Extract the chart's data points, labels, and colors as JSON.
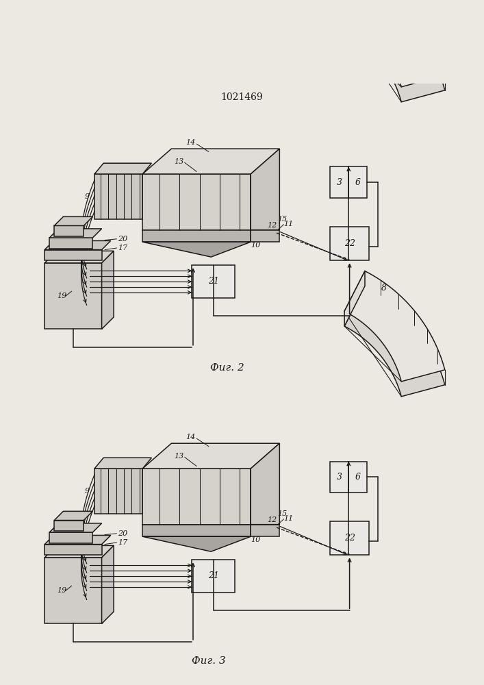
{
  "title": "1021469",
  "bg": "#ece8e2",
  "lc": "#1a1a1a",
  "fig1_caption": "Фиг. 2",
  "fig2_caption": "Фиг. 3",
  "lw": 1.1
}
